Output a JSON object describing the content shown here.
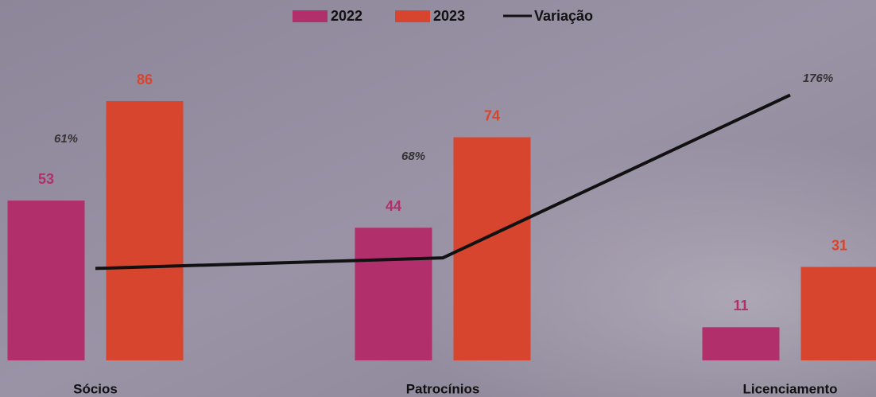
{
  "chart_data": {
    "type": "bar-line",
    "categories": [
      "Sócios",
      "Patrocínios",
      "Licenciamento"
    ],
    "series": [
      {
        "name": "2022",
        "color": "#b12f6b",
        "values": [
          53,
          44,
          11
        ]
      },
      {
        "name": "2023",
        "color": "#d8452f",
        "values": [
          86,
          74,
          31
        ]
      },
      {
        "name": "Variação",
        "color": "#111111",
        "axis": "y2",
        "values": [
          61,
          68,
          176
        ],
        "value_labels": [
          "61%",
          "68%",
          "176%"
        ]
      }
    ],
    "ylim": [
      0,
      100
    ],
    "y2lim": [
      0,
      200
    ],
    "legend": "top"
  }
}
